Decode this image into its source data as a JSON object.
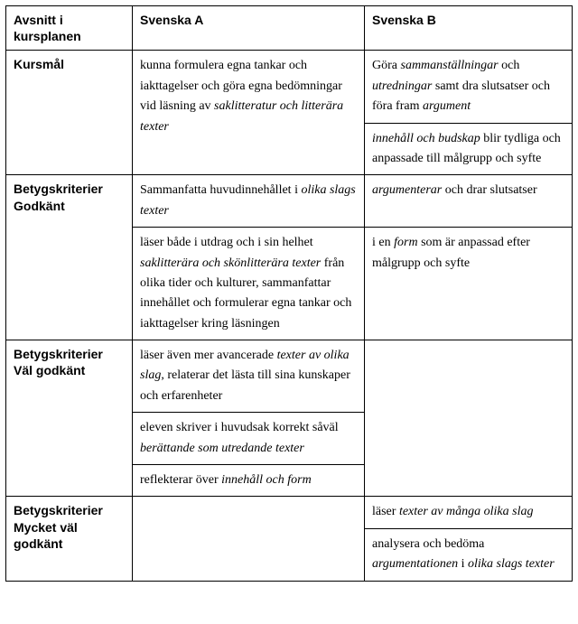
{
  "header": {
    "section": "Avsnitt i kursplanen",
    "colA": "Svenska A",
    "colB": "Svenska B"
  },
  "rows": {
    "kursmal": {
      "label": "Kursmål",
      "a": {
        "pre": "kunna formulera egna tankar och iakttagelser och göra egna bedömningar vid läsning av ",
        "em": "saklitteratur och litterära texter"
      },
      "b1": {
        "t1": "Göra ",
        "em1": "sammanställningar",
        "t2": " och ",
        "em2": "utredningar",
        "t3": " samt dra slutsatser och föra fram ",
        "em3": "argument"
      },
      "b2": {
        "em1": "innehåll och budskap",
        "t1": " blir tydliga och anpassade till målgrupp och syfte"
      }
    },
    "godkant": {
      "label": "Betygskriterier Godkänt",
      "a1": {
        "t1": "Sammanfatta huvudinnehållet i ",
        "em1": "olika slags texter"
      },
      "b1": {
        "em1": "argumenterar",
        "t1": " och drar slutsatser"
      },
      "a2": {
        "t1": "läser både i utdrag och i sin helhet ",
        "em1": "saklitterära och skönlitterära texter",
        "t2": " från olika tider och kulturer, sammanfattar innehållet och formulerar egna tankar och iakttagelser kring läsningen"
      },
      "b2": {
        "t1": "i en ",
        "em1": "form",
        "t2": " som är anpassad efter målgrupp och syfte"
      }
    },
    "valgodkant": {
      "label": "Betygskriterier Väl godkänt",
      "a1": {
        "t1": "läser även mer avancerade ",
        "em1": "texter av olika slag",
        "t2": ", relaterar det lästa till sina kunskaper och erfarenheter"
      },
      "a2": {
        "t1": "eleven skriver i huvudsak korrekt såväl ",
        "em1": "berättande som utredande texter"
      },
      "a3": {
        "t1": "reflekterar över ",
        "em1": "innehåll och form"
      }
    },
    "mycketval": {
      "label": "Betygskriterier Mycket väl godkänt",
      "b1": {
        "t1": "läser ",
        "em1": "texter av många olika slag"
      },
      "b2": {
        "t1": "analysera och bedöma ",
        "em1": "argumentationen",
        "t2": " i ",
        "em2": "olika slags texter"
      }
    }
  }
}
